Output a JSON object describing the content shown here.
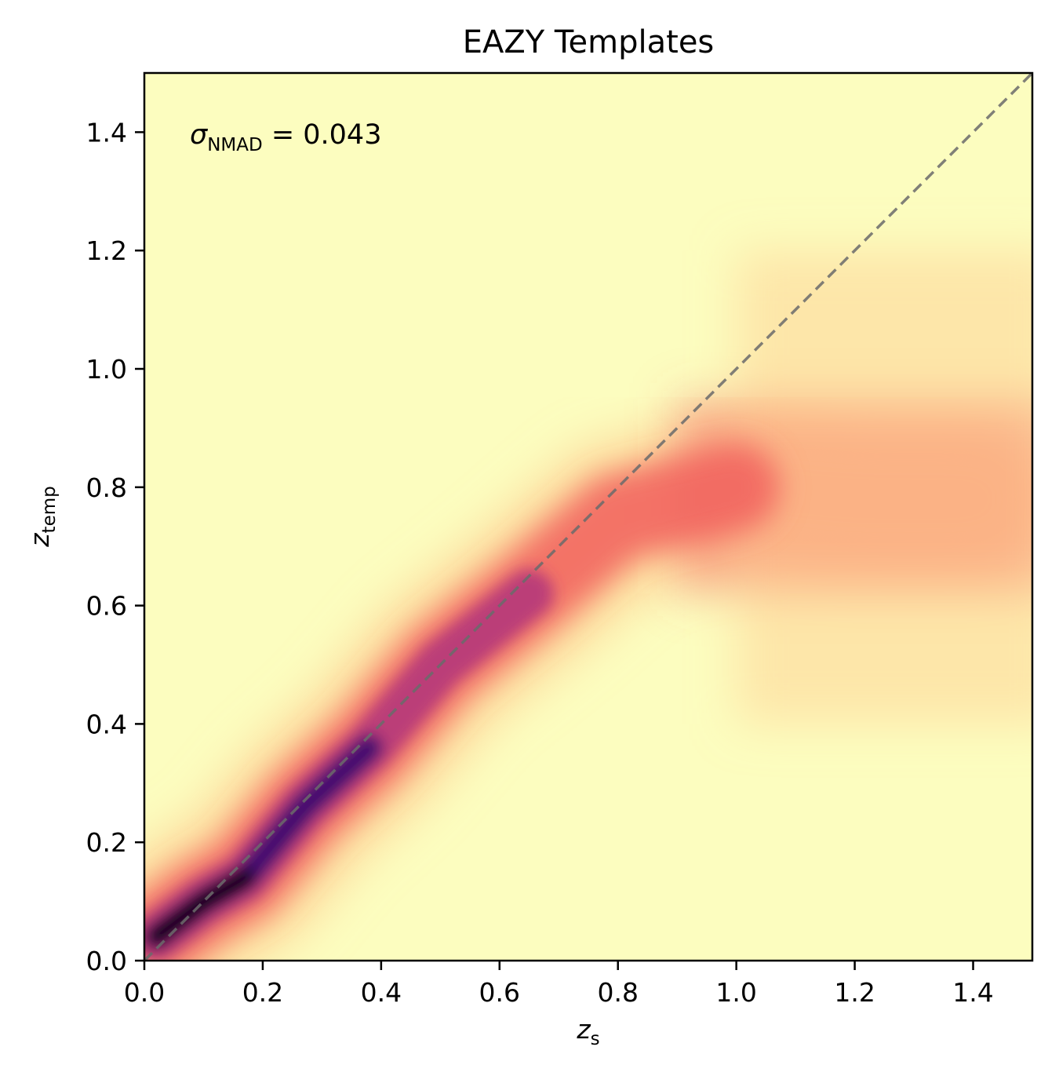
{
  "chart_data": {
    "type": "heatmap",
    "title": "EAZY Templates",
    "xlabel": {
      "symbol": "z",
      "subscript": "s"
    },
    "ylabel": {
      "symbol": "z",
      "subscript": "temp"
    },
    "xlim": [
      0.0,
      1.5
    ],
    "ylim": [
      0.0,
      1.5
    ],
    "xticks": [
      "0.0",
      "0.2",
      "0.4",
      "0.6",
      "0.8",
      "1.0",
      "1.2",
      "1.4"
    ],
    "yticks": [
      "0.0",
      "0.2",
      "0.4",
      "0.6",
      "0.8",
      "1.0",
      "1.2",
      "1.4"
    ],
    "xtick_values": [
      0.0,
      0.2,
      0.4,
      0.6,
      0.8,
      1.0,
      1.2,
      1.4
    ],
    "ytick_values": [
      0.0,
      0.2,
      0.4,
      0.6,
      0.8,
      1.0,
      1.2,
      1.4
    ],
    "colormap": "magma_r",
    "colors": {
      "low": "#fcfdbf",
      "mid_low": "#fec98d",
      "mid": "#f1605d",
      "mid_high": "#b5367a",
      "high": "#3b0f70",
      "peak": "#000004",
      "reference_line": "#6b6b6b"
    },
    "reference_line": {
      "style": "dashed",
      "from": [
        0.0,
        0.0
      ],
      "to": [
        1.5,
        1.5
      ]
    },
    "annotation": {
      "symbol": "σ",
      "subscript": "NMAD",
      "text": " = 0.043",
      "position": "top-left"
    },
    "density_ridge": [
      {
        "x": 0.02,
        "y": 0.04
      },
      {
        "x": 0.1,
        "y": 0.1
      },
      {
        "x": 0.17,
        "y": 0.14
      },
      {
        "x": 0.27,
        "y": 0.26
      },
      {
        "x": 0.38,
        "y": 0.36
      },
      {
        "x": 0.5,
        "y": 0.5
      },
      {
        "x": 0.65,
        "y": 0.62
      },
      {
        "x": 0.8,
        "y": 0.75
      },
      {
        "x": 1.0,
        "y": 0.8
      },
      {
        "x": 1.2,
        "y": 0.78
      },
      {
        "x": 1.4,
        "y": 0.78
      }
    ]
  }
}
